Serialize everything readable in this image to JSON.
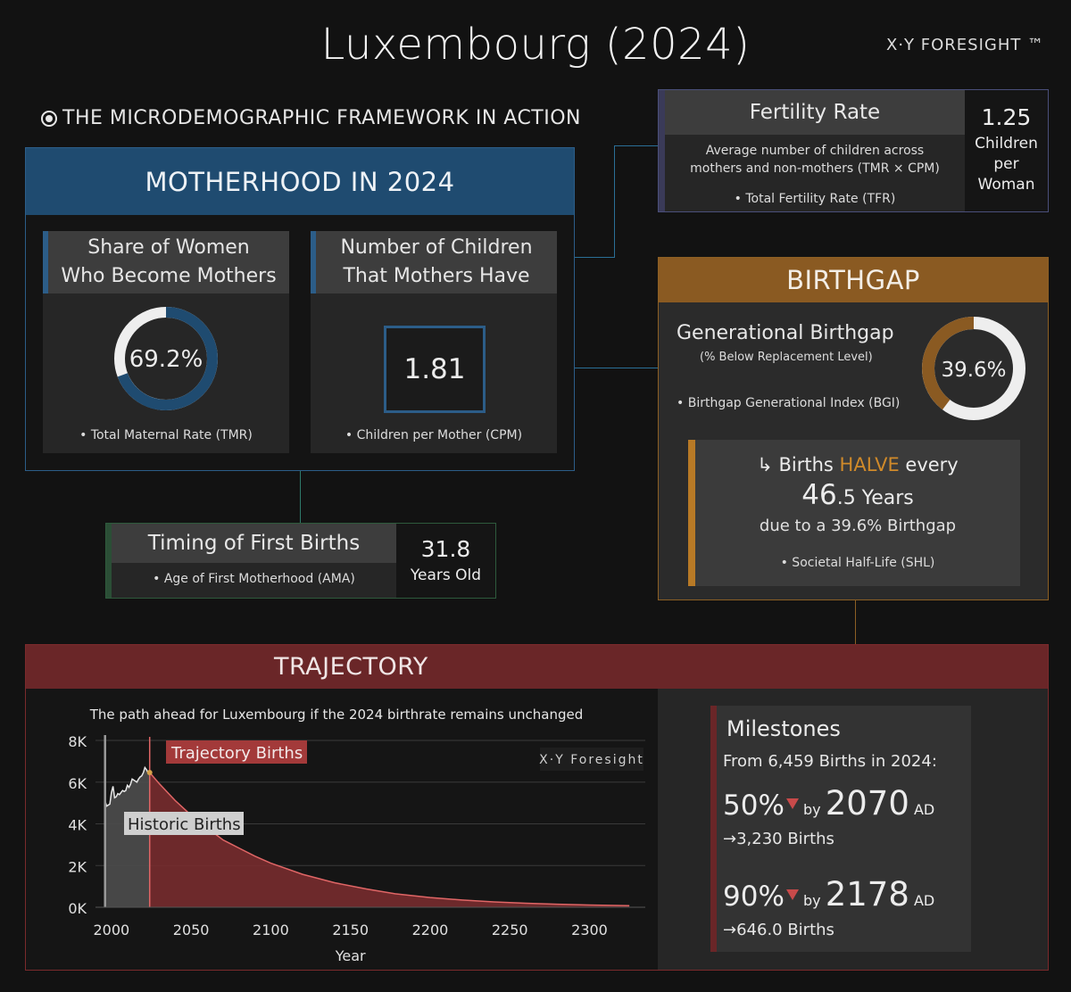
{
  "header": {
    "title": "Luxembourg (2024)",
    "brand": "X·Y FORESIGHT ™",
    "subtitle": "THE MICRODEMOGRAPHIC FRAMEWORK IN ACTION"
  },
  "motherhood": {
    "title": "MOTHERHOOD IN 2024",
    "share_card": {
      "title_line1": "Share of Women",
      "title_line2": "Who Become Mothers",
      "value_text": "69.2%",
      "value": 69.2,
      "footer": "• Total Maternal Rate (TMR)"
    },
    "children_card": {
      "title_line1": "Number of Children",
      "title_line2": "That Mothers Have",
      "value_text": "1.81",
      "footer": "• Children per Mother (CPM)"
    }
  },
  "fertility": {
    "title": "Fertility Rate",
    "desc_line1": "Average number of children across",
    "desc_line2": "mothers and non-mothers (TMR × CPM)",
    "footer": "• Total Fertility Rate (TFR)",
    "value": "1.25",
    "unit_line1": "Children",
    "unit_line2": "per",
    "unit_line3": "Woman"
  },
  "birthgap": {
    "title": "BIRTHGAP",
    "gen_title": "Generational Birthgap",
    "gen_sub": "(% Below Replacement Level)",
    "gen_footer": "• Birthgap Generational Index (BGI)",
    "value_text": "39.6%",
    "value": 39.6,
    "halve_prefix": "↳ Births ",
    "halve_word": "HALVE",
    "halve_suffix": " every",
    "years_big": "46",
    "years_small": ".5 Years",
    "due_text": "due to a 39.6% Birthgap",
    "shl_footer": "• Societal Half-Life (SHL)"
  },
  "timing": {
    "title": "Timing of First Births",
    "footer": "• Age of First Motherhood (AMA)",
    "value": "31.8",
    "unit": "Years Old"
  },
  "trajectory": {
    "title": "TRAJECTORY",
    "milestones": {
      "title": "Milestones",
      "from_text": "From 6,459 Births in 2024:",
      "m1_pct": "50%",
      "m1_by": "by",
      "m1_year": "2070",
      "m1_ad": "AD",
      "m1_births": "→3,230 Births",
      "m2_pct": "90%",
      "m2_by": "by",
      "m2_year": "2178",
      "m2_ad": "AD",
      "m2_births": "→646.0 Births"
    }
  },
  "colors": {
    "blue": "#2c5d88",
    "gold": "#b87a26",
    "red": "#6a2628",
    "trajectory_fill": "#7d2d2f",
    "trajectory_line": "#e06666",
    "historic_fill": "#4d4d4d"
  },
  "chart_data": {
    "type": "area",
    "title": "The path ahead for Luxembourg if the 2024 birthrate remains unchanged",
    "watermark": "X·Y Foresight",
    "xlabel": "Year",
    "ylabel": "",
    "xlim": [
      1990,
      2335
    ],
    "ylim": [
      0,
      8000
    ],
    "x_ticks": [
      2000,
      2050,
      2100,
      2150,
      2200,
      2250,
      2300
    ],
    "y_ticks": [
      0,
      2000,
      4000,
      6000,
      8000
    ],
    "y_tick_labels": [
      "0K",
      "2K",
      "4K",
      "6K",
      "8K"
    ],
    "series": [
      {
        "name": "Historic Births",
        "x": [
          1996,
          1997,
          1998,
          1999,
          2000,
          2001,
          2002,
          2003,
          2004,
          2005,
          2006,
          2007,
          2008,
          2009,
          2010,
          2011,
          2012,
          2013,
          2014,
          2015,
          2016,
          2017,
          2018,
          2019,
          2020,
          2021,
          2022,
          2023,
          2024
        ],
        "y": [
          5100,
          4850,
          4900,
          4950,
          5500,
          5800,
          5250,
          5300,
          5450,
          5400,
          5500,
          5600,
          5550,
          5600,
          5850,
          5750,
          5900,
          6150,
          6100,
          6050,
          6000,
          6150,
          6250,
          6300,
          6450,
          6700,
          6600,
          6450,
          6459
        ]
      },
      {
        "name": "Trajectory Births",
        "x": [
          2024,
          2030,
          2040,
          2050,
          2060,
          2070,
          2080,
          2090,
          2100,
          2120,
          2140,
          2160,
          2178,
          2200,
          2220,
          2240,
          2260,
          2280,
          2300,
          2325
        ],
        "y": [
          6459,
          5928,
          5117,
          4417,
          3812,
          3230,
          2839,
          2451,
          2115,
          1577,
          1175,
          876,
          646,
          467,
          348,
          259,
          193,
          144,
          107,
          74
        ]
      }
    ]
  }
}
